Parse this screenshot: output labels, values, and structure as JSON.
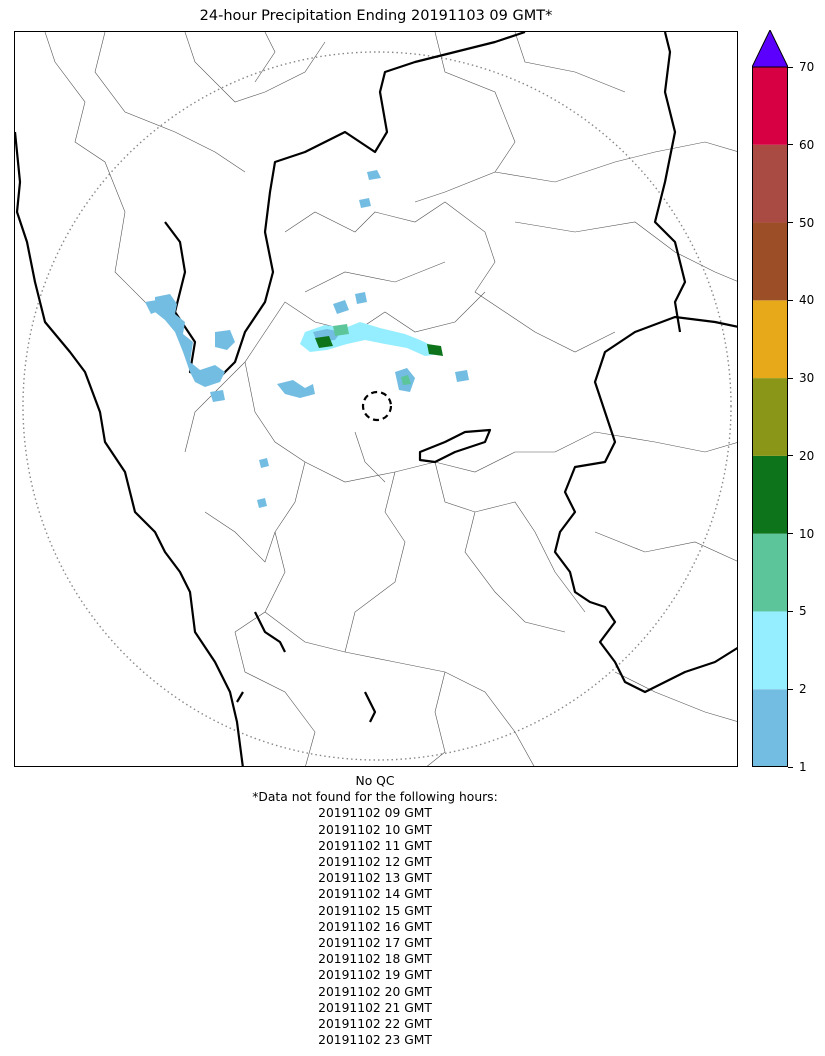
{
  "title": "24-hour Precipitation Ending 20191103 09 GMT*",
  "colorbar": {
    "ticks": [
      "1",
      "2",
      "5",
      "10",
      "20",
      "30",
      "40",
      "50",
      "60",
      "70"
    ],
    "bins": [
      {
        "from": 1,
        "to": 2,
        "color": "#74BDE2"
      },
      {
        "from": 2,
        "to": 5,
        "color": "#95EEFF"
      },
      {
        "from": 5,
        "to": 10,
        "color": "#5CC59A"
      },
      {
        "from": 10,
        "to": 20,
        "color": "#0E741B"
      },
      {
        "from": 20,
        "to": 30,
        "color": "#8A9618"
      },
      {
        "from": 30,
        "to": 40,
        "color": "#E7A81A"
      },
      {
        "from": 40,
        "to": 50,
        "color": "#9C4E27"
      },
      {
        "from": 50,
        "to": 60,
        "color": "#A94A43"
      },
      {
        "from": 60,
        "to": 70,
        "color": "#D70042"
      }
    ],
    "overflow_color": "#5B00FF"
  },
  "notes": {
    "qc": "No QC",
    "missing_header": "*Data not found for the following hours:",
    "missing_hours": [
      "20191102 09 GMT",
      "20191102 10 GMT",
      "20191102 11 GMT",
      "20191102 12 GMT",
      "20191102 13 GMT",
      "20191102 14 GMT",
      "20191102 15 GMT",
      "20191102 16 GMT",
      "20191102 17 GMT",
      "20191102 18 GMT",
      "20191102 19 GMT",
      "20191102 20 GMT",
      "20191102 21 GMT",
      "20191102 22 GMT",
      "20191102 23 GMT"
    ]
  }
}
